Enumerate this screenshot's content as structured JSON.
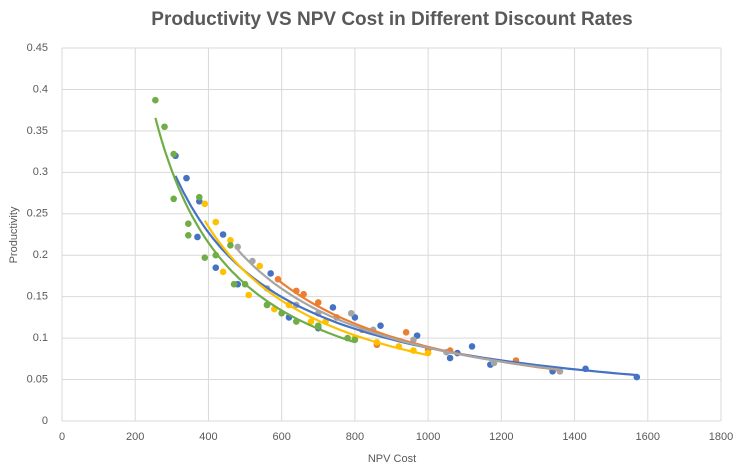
{
  "chart_data": {
    "type": "scatter",
    "title": "Productivity VS NPV Cost in Different Discount Rates",
    "x_label": "NPV Cost",
    "y_label": "Productivity",
    "xlim": [
      0,
      1800
    ],
    "xticks": [
      0,
      200,
      400,
      600,
      800,
      1000,
      1200,
      1400,
      1600,
      1800
    ],
    "ylim": [
      0,
      0.45
    ],
    "yticks": [
      0,
      0.05,
      0.1,
      0.15,
      0.2,
      0.25,
      0.3,
      0.35,
      0.4,
      0.45
    ],
    "grid": true,
    "trendline": "power",
    "series": [
      {
        "color": "#4472c4",
        "x": [
          310,
          340,
          370,
          375,
          420,
          440,
          480,
          560,
          570,
          620,
          700,
          740,
          800,
          870,
          970,
          1060,
          1080,
          1120,
          1170,
          1340,
          1430,
          1570
        ],
        "values": [
          0.32,
          0.293,
          0.222,
          0.265,
          0.185,
          0.225,
          0.165,
          0.14,
          0.178,
          0.125,
          0.112,
          0.137,
          0.125,
          0.115,
          0.103,
          0.076,
          0.082,
          0.09,
          0.068,
          0.06,
          0.063,
          0.053
        ]
      },
      {
        "color": "#ed7d31",
        "x": [
          590,
          640,
          660,
          700,
          750,
          820,
          860,
          940,
          1000,
          1060,
          1240,
          1360
        ],
        "values": [
          0.171,
          0.157,
          0.153,
          0.143,
          0.125,
          0.11,
          0.092,
          0.107,
          0.086,
          0.085,
          0.073,
          0.06
        ]
      },
      {
        "color": "#a5a5a5",
        "x": [
          480,
          520,
          560,
          640,
          700,
          790,
          850,
          960,
          1050,
          1180,
          1360
        ],
        "values": [
          0.21,
          0.193,
          0.16,
          0.14,
          0.13,
          0.13,
          0.11,
          0.098,
          0.083,
          0.07,
          0.06
        ]
      },
      {
        "color": "#ffc000",
        "x": [
          390,
          420,
          440,
          460,
          510,
          540,
          580,
          620,
          680,
          720,
          800,
          860,
          920,
          960,
          1000
        ],
        "values": [
          0.262,
          0.24,
          0.18,
          0.218,
          0.152,
          0.187,
          0.135,
          0.14,
          0.12,
          0.12,
          0.1,
          0.095,
          0.09,
          0.085,
          0.082
        ]
      },
      {
        "color": "#70ad47",
        "x": [
          255,
          280,
          305,
          305,
          345,
          345,
          375,
          390,
          420,
          460,
          470,
          500,
          560,
          600,
          640,
          700,
          780,
          800
        ],
        "values": [
          0.387,
          0.355,
          0.322,
          0.268,
          0.238,
          0.224,
          0.27,
          0.197,
          0.2,
          0.212,
          0.165,
          0.165,
          0.14,
          0.13,
          0.12,
          0.115,
          0.1,
          0.098
        ]
      }
    ]
  }
}
